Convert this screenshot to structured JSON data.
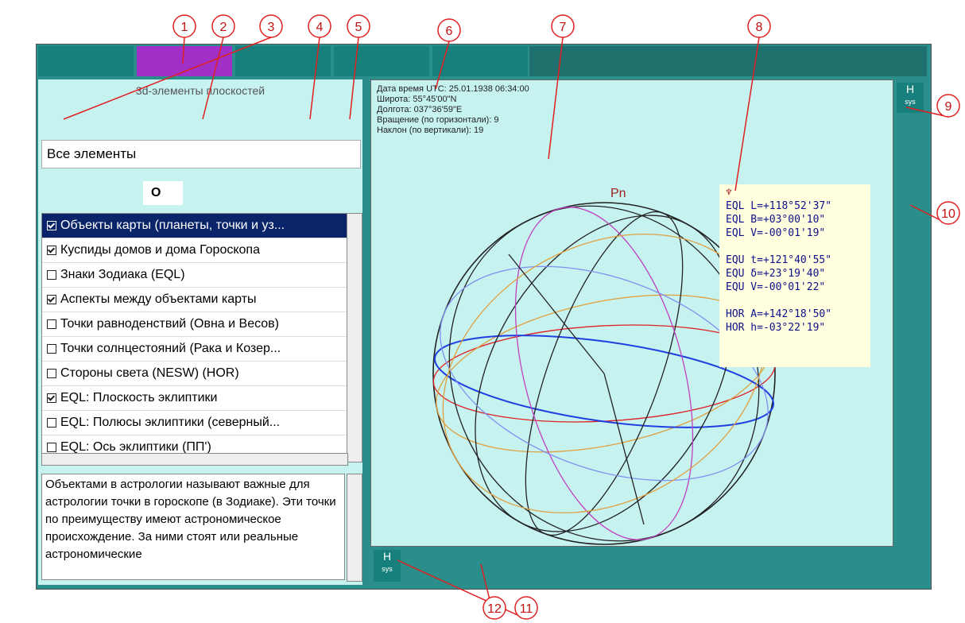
{
  "panel_title": "3d-элементы плоскостей",
  "dropdown": "Все элементы",
  "small_dropdown": "O",
  "list_items": [
    {
      "checked": true,
      "label": "Объекты карты (планеты, точки и уз..."
    },
    {
      "checked": true,
      "label": "Куспиды домов и дома Гороскопа"
    },
    {
      "checked": false,
      "label": "Знаки Зодиака (EQL)"
    },
    {
      "checked": true,
      "label": "Аспекты между объектами карты"
    },
    {
      "checked": false,
      "label": "Точки равноденствий (Овна и Весов)"
    },
    {
      "checked": false,
      "label": "Точки солнцестояний (Рака и Козер..."
    },
    {
      "checked": false,
      "label": "Стороны света (NESW) (HOR)"
    },
    {
      "checked": true,
      "label": "EQL: Плоскость эклиптики"
    },
    {
      "checked": false,
      "label": "EQL: Полюсы эклиптики (северный..."
    },
    {
      "checked": false,
      "label": "EQL: Ось эклиптики (ПП')"
    }
  ],
  "description": "Объектами в астрологии называют важные для астрологии точки в гороскопе (в Зодиаке). Эти точки по преимуществу имеют астрономическое происхождение. За ними стоят или реальные астрономические",
  "info_lines": [
    "Дата время UTC: 25.01.1938 06:34:00",
    "Широта: 55°45'00\"N",
    "Долгота: 037°36'59\"E",
    "Вращение (по горизонтали): 9",
    "Наклон (по вертикали): 19"
  ],
  "pole_label": "Pn",
  "popup_symbol": "♆",
  "coordinates": [
    [
      "EQL L=+118°52'37\"",
      "EQL B=+03°00'10\"",
      "EQL V=-00°01'19\""
    ],
    [
      "EQU t=+121°40'55\"",
      "EQU δ=+23°19'40\"",
      "EQU V=-00°01'22\""
    ],
    [
      "HOR A=+142°18'50\"",
      "HOR h=-03°22'19\""
    ]
  ],
  "hsys": [
    "H",
    "sys"
  ],
  "callouts": [
    "1",
    "2",
    "3",
    "4",
    "5",
    "6",
    "7",
    "8",
    "9",
    "10",
    "11",
    "12"
  ]
}
